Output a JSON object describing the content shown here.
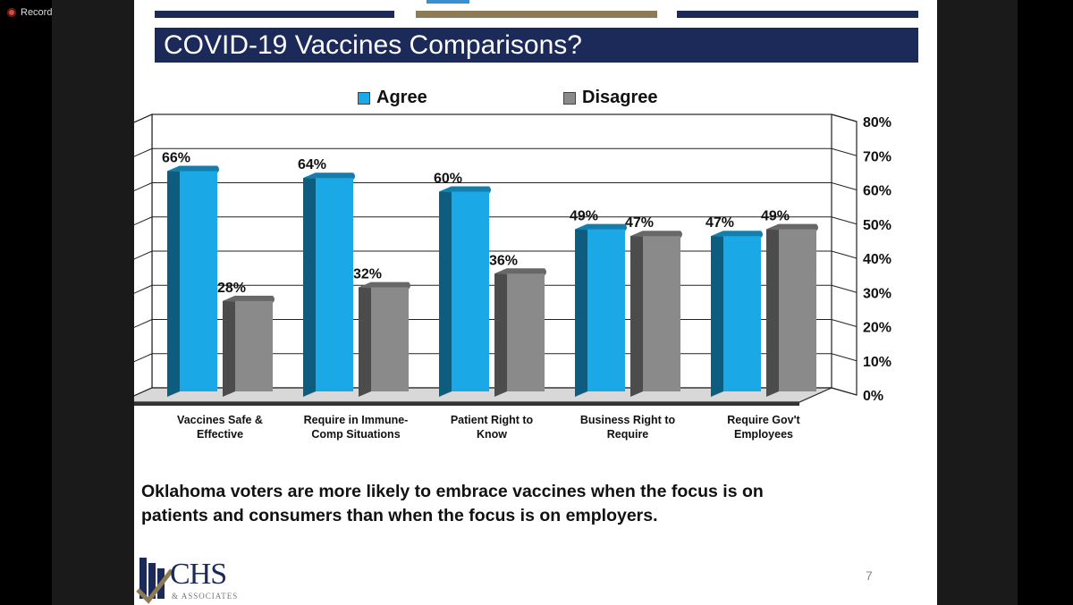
{
  "recording": {
    "label": "Recording"
  },
  "slide": {
    "title": "COVID-19 Vaccines Comparisons?",
    "summary_line1": "Oklahoma voters are more likely to embrace vaccines when the focus is on",
    "summary_line2": "patients and consumers than when the focus is on employers.",
    "page_number": "7",
    "logo_text": "CHS",
    "logo_subtext": "& ASSOCIATES"
  },
  "colors": {
    "agree": "#1aa9e6",
    "disagree": "#8a8a8a",
    "navy": "#1c2a5a",
    "gold": "#8c7b55"
  },
  "chart_data": {
    "type": "bar",
    "title": "",
    "categories": [
      [
        "Vaccines Safe &",
        "Effective"
      ],
      [
        "Require in Immune-",
        "Comp Situations"
      ],
      [
        "Patient Right to",
        "Know"
      ],
      [
        "Business Right to",
        "Require"
      ],
      [
        "Require Gov't",
        "Employees"
      ]
    ],
    "series": [
      {
        "name": "Agree",
        "values": [
          66,
          64,
          60,
          49,
          47
        ],
        "labels": [
          "66%",
          "64%",
          "60%",
          "49%",
          "47%"
        ]
      },
      {
        "name": "Disagree",
        "values": [
          28,
          32,
          36,
          47,
          49
        ],
        "labels": [
          "28%",
          "32%",
          "36%",
          "47%",
          "49%"
        ]
      }
    ],
    "y_ticks": [
      "0%",
      "10%",
      "20%",
      "30%",
      "40%",
      "50%",
      "60%",
      "70%",
      "80%"
    ],
    "ylim": [
      0,
      80
    ],
    "ylabel": "",
    "xlabel": "",
    "grid": true,
    "legend_position": "top"
  }
}
